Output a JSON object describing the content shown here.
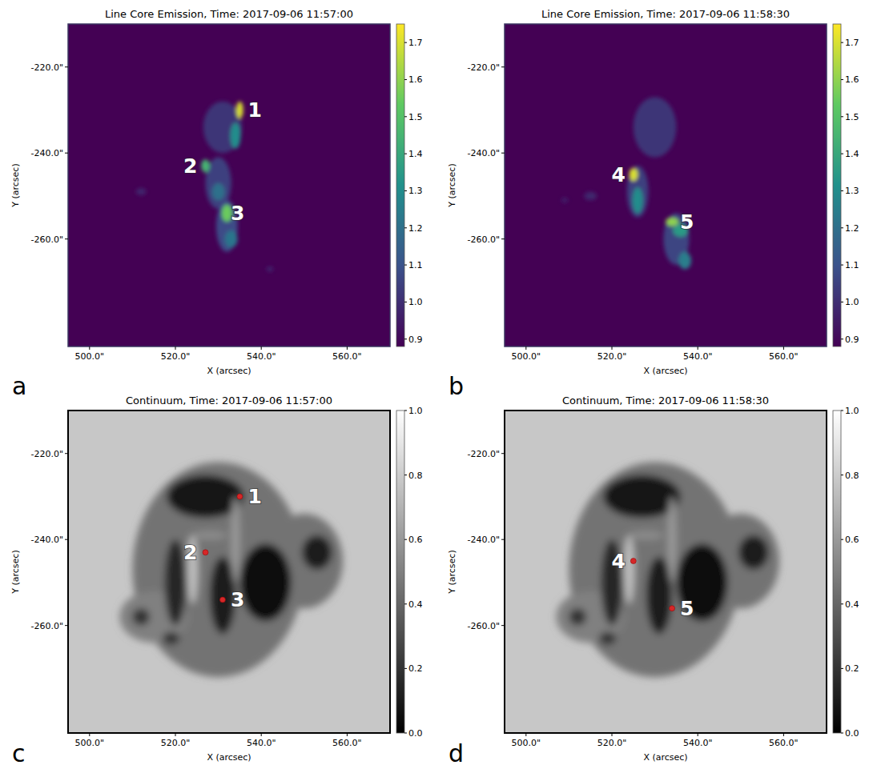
{
  "chart_data": [
    {
      "type": "image",
      "title": "Line Core Emission, Time: 2017-09-06 11:57:00",
      "panel_label": "a",
      "x_label": "X (arcsec)",
      "y_label": "Y (arcsec)",
      "xlim": [
        495,
        570
      ],
      "ylim": [
        -285,
        -210
      ],
      "xticks": [
        {
          "value": 500,
          "label": "500.0\""
        },
        {
          "value": 520,
          "label": "520.0\""
        },
        {
          "value": 540,
          "label": "540.0\""
        },
        {
          "value": 560,
          "label": "560.0\""
        }
      ],
      "yticks": [
        {
          "value": -220,
          "label": "-220.0\""
        },
        {
          "value": -240,
          "label": "-240.0\""
        },
        {
          "value": -260,
          "label": "-260.0\""
        }
      ],
      "color": "viridis",
      "colorbar": {
        "range": [
          0.88,
          1.75
        ],
        "ticks": [
          0.9,
          {
            "value": 1,
            "label": "1.0"
          },
          1.1,
          1.2,
          1.3,
          1.4,
          1.5,
          1.6,
          1.7
        ]
      },
      "blobs": [
        {
          "x": 531,
          "y": -234,
          "rx": 4.5,
          "ry": 6,
          "value": 1.02
        },
        {
          "x": 530,
          "y": -247,
          "rx": 3,
          "ry": 6,
          "value": 1.05
        },
        {
          "x": 532,
          "y": -257,
          "rx": 2.5,
          "ry": 6,
          "value": 1.08
        },
        {
          "x": 512,
          "y": -249,
          "rx": 1.2,
          "ry": 0.8,
          "value": 0.98
        },
        {
          "x": 542,
          "y": -267,
          "rx": 0.8,
          "ry": 0.6,
          "value": 0.97
        },
        {
          "x": 534,
          "y": -236,
          "rx": 1.2,
          "ry": 3,
          "value": 1.3
        },
        {
          "x": 530,
          "y": -249,
          "rx": 1.5,
          "ry": 2,
          "value": 1.2
        },
        {
          "x": 533,
          "y": -260,
          "rx": 1.5,
          "ry": 2,
          "value": 1.22
        },
        {
          "x": 527,
          "y": -243,
          "rx": 1,
          "ry": 1.5,
          "value": 1.45
        },
        {
          "x": 532,
          "y": -254,
          "rx": 1.2,
          "ry": 2,
          "value": 1.55
        },
        {
          "x": 535,
          "y": -230,
          "rx": 0.8,
          "ry": 2,
          "value": 1.7
        }
      ],
      "points": [
        {
          "x": 535,
          "y": -230,
          "label": "1",
          "side": "right"
        },
        {
          "x": 527,
          "y": -243,
          "label": "2",
          "side": "left"
        },
        {
          "x": 531,
          "y": -254,
          "label": "3",
          "side": "right"
        }
      ]
    },
    {
      "type": "image",
      "title": "Line Core Emission, Time: 2017-09-06 11:58:30",
      "panel_label": "b",
      "x_label": "X (arcsec)",
      "y_label": "Y (arcsec)",
      "xlim": [
        495,
        570
      ],
      "ylim": [
        -285,
        -210
      ],
      "xticks": [
        {
          "value": 500,
          "label": "500.0\""
        },
        {
          "value": 520,
          "label": "520.0\""
        },
        {
          "value": 540,
          "label": "540.0\""
        },
        {
          "value": 560,
          "label": "560.0\""
        }
      ],
      "yticks": [
        {
          "value": -220,
          "label": "-220.0\""
        },
        {
          "value": -240,
          "label": "-240.0\""
        },
        {
          "value": -260,
          "label": "-260.0\""
        }
      ],
      "color": "viridis",
      "colorbar": {
        "range": [
          0.88,
          1.75
        ],
        "ticks": [
          0.9,
          {
            "value": 1,
            "label": "1.0"
          },
          1.1,
          1.2,
          1.3,
          1.4,
          1.5,
          1.6,
          1.7
        ]
      },
      "blobs": [
        {
          "x": 530,
          "y": -234,
          "rx": 5,
          "ry": 7,
          "value": 1.02
        },
        {
          "x": 526,
          "y": -249,
          "rx": 2.5,
          "ry": 6,
          "value": 1.05
        },
        {
          "x": 535,
          "y": -260,
          "rx": 3,
          "ry": 6,
          "value": 1.06
        },
        {
          "x": 515,
          "y": -250,
          "rx": 1.5,
          "ry": 1,
          "value": 0.98
        },
        {
          "x": 509,
          "y": -251,
          "rx": 0.8,
          "ry": 0.6,
          "value": 0.96
        },
        {
          "x": 526,
          "y": -251,
          "rx": 1.2,
          "ry": 3,
          "value": 1.3
        },
        {
          "x": 537,
          "y": -265,
          "rx": 1.5,
          "ry": 2,
          "value": 1.25
        },
        {
          "x": 536,
          "y": -258,
          "rx": 1.8,
          "ry": 1.5,
          "value": 1.35
        },
        {
          "x": 534,
          "y": -256,
          "rx": 1.5,
          "ry": 1,
          "value": 1.6
        },
        {
          "x": 525,
          "y": -245,
          "rx": 1,
          "ry": 1.5,
          "value": 1.7
        }
      ],
      "points": [
        {
          "x": 525,
          "y": -245,
          "label": "4",
          "side": "left"
        },
        {
          "x": 534,
          "y": -256,
          "label": "5",
          "side": "right"
        }
      ]
    },
    {
      "type": "image",
      "title": "Continuum, Time: 2017-09-06 11:57:00",
      "panel_label": "c",
      "x_label": "X (arcsec)",
      "y_label": "Y (arcsec)",
      "xlim": [
        495,
        570
      ],
      "ylim": [
        -285,
        -210
      ],
      "xticks": [
        {
          "value": 500,
          "label": "500.0\""
        },
        {
          "value": 520,
          "label": "520.0\""
        },
        {
          "value": 540,
          "label": "540.0\""
        },
        {
          "value": 560,
          "label": "560.0\""
        }
      ],
      "yticks": [
        {
          "value": -220,
          "label": "-220.0\""
        },
        {
          "value": -240,
          "label": "-240.0\""
        },
        {
          "value": -260,
          "label": "-260.0\""
        }
      ],
      "color": "gray",
      "background": 0.78,
      "colorbar": {
        "range": [
          0,
          1
        ],
        "ticks": [
          {
            "value": 0,
            "label": "0.0"
          },
          0.2,
          0.4,
          0.6,
          0.8,
          {
            "value": 1,
            "label": "1.0"
          }
        ]
      },
      "blobs": [
        {
          "x": 530,
          "y": -247,
          "rx": 20,
          "ry": 25,
          "value": 0.45
        },
        {
          "x": 550,
          "y": -245,
          "rx": 9,
          "ry": 11,
          "value": 0.45
        },
        {
          "x": 515,
          "y": -258,
          "rx": 8,
          "ry": 6,
          "value": 0.5
        },
        {
          "x": 527,
          "y": -230,
          "rx": 9,
          "ry": 5,
          "value": 0.08
        },
        {
          "x": 520,
          "y": -250,
          "rx": 2.5,
          "ry": 10,
          "value": 0.15
        },
        {
          "x": 531,
          "y": -253,
          "rx": 3,
          "ry": 9,
          "value": 0.12
        },
        {
          "x": 541,
          "y": -250,
          "rx": 6,
          "ry": 9,
          "value": 0.06
        },
        {
          "x": 553,
          "y": -243,
          "rx": 3.5,
          "ry": 4,
          "value": 0.12
        },
        {
          "x": 512,
          "y": -258,
          "rx": 2,
          "ry": 2,
          "value": 0.2
        },
        {
          "x": 519,
          "y": -263,
          "rx": 2,
          "ry": 1.5,
          "value": 0.2
        },
        {
          "x": 524,
          "y": -247,
          "rx": 1.2,
          "ry": 8,
          "value": 0.75
        },
        {
          "x": 534,
          "y": -240,
          "rx": 1,
          "ry": 10,
          "value": 0.6
        },
        {
          "x": 528,
          "y": -239,
          "rx": 4,
          "ry": 1,
          "value": 0.55
        }
      ],
      "marker": "circle",
      "points": [
        {
          "x": 535,
          "y": -230,
          "label": "1",
          "side": "right"
        },
        {
          "x": 527,
          "y": -243,
          "label": "2",
          "side": "left"
        },
        {
          "x": 531,
          "y": -254,
          "label": "3",
          "side": "right"
        }
      ]
    },
    {
      "type": "image",
      "title": "Continuum, Time: 2017-09-06 11:58:30",
      "panel_label": "d",
      "x_label": "X (arcsec)",
      "y_label": "Y (arcsec)",
      "xlim": [
        495,
        570
      ],
      "ylim": [
        -285,
        -210
      ],
      "xticks": [
        {
          "value": 500,
          "label": "500.0\""
        },
        {
          "value": 520,
          "label": "520.0\""
        },
        {
          "value": 540,
          "label": "540.0\""
        },
        {
          "value": 560,
          "label": "560.0\""
        }
      ],
      "yticks": [
        {
          "value": -220,
          "label": "-220.0\""
        },
        {
          "value": -240,
          "label": "-240.0\""
        },
        {
          "value": -260,
          "label": "-260.0\""
        }
      ],
      "color": "gray",
      "background": 0.78,
      "colorbar": {
        "range": [
          0,
          1
        ],
        "ticks": [
          {
            "value": 0,
            "label": "0.0"
          },
          0.2,
          0.4,
          0.6,
          0.8,
          {
            "value": 1,
            "label": "1.0"
          }
        ]
      },
      "blobs": [
        {
          "x": 530,
          "y": -247,
          "rx": 20,
          "ry": 25,
          "value": 0.45
        },
        {
          "x": 550,
          "y": -245,
          "rx": 9,
          "ry": 11,
          "value": 0.45
        },
        {
          "x": 515,
          "y": -258,
          "rx": 8,
          "ry": 6,
          "value": 0.5
        },
        {
          "x": 527,
          "y": -230,
          "rx": 9,
          "ry": 5,
          "value": 0.08
        },
        {
          "x": 520,
          "y": -250,
          "rx": 2.5,
          "ry": 10,
          "value": 0.15
        },
        {
          "x": 531,
          "y": -253,
          "rx": 3,
          "ry": 9,
          "value": 0.12
        },
        {
          "x": 541,
          "y": -250,
          "rx": 6,
          "ry": 9,
          "value": 0.06
        },
        {
          "x": 553,
          "y": -243,
          "rx": 3.5,
          "ry": 4,
          "value": 0.12
        },
        {
          "x": 512,
          "y": -258,
          "rx": 2,
          "ry": 2,
          "value": 0.2
        },
        {
          "x": 519,
          "y": -263,
          "rx": 2,
          "ry": 1.5,
          "value": 0.2
        },
        {
          "x": 524,
          "y": -247,
          "rx": 1.2,
          "ry": 8,
          "value": 0.75
        },
        {
          "x": 534,
          "y": -240,
          "rx": 1,
          "ry": 10,
          "value": 0.6
        },
        {
          "x": 528,
          "y": -239,
          "rx": 4,
          "ry": 1,
          "value": 0.55
        }
      ],
      "marker": "circle",
      "points": [
        {
          "x": 525,
          "y": -245,
          "label": "4",
          "side": "left"
        },
        {
          "x": 534,
          "y": -256,
          "label": "5",
          "side": "right"
        }
      ]
    }
  ]
}
